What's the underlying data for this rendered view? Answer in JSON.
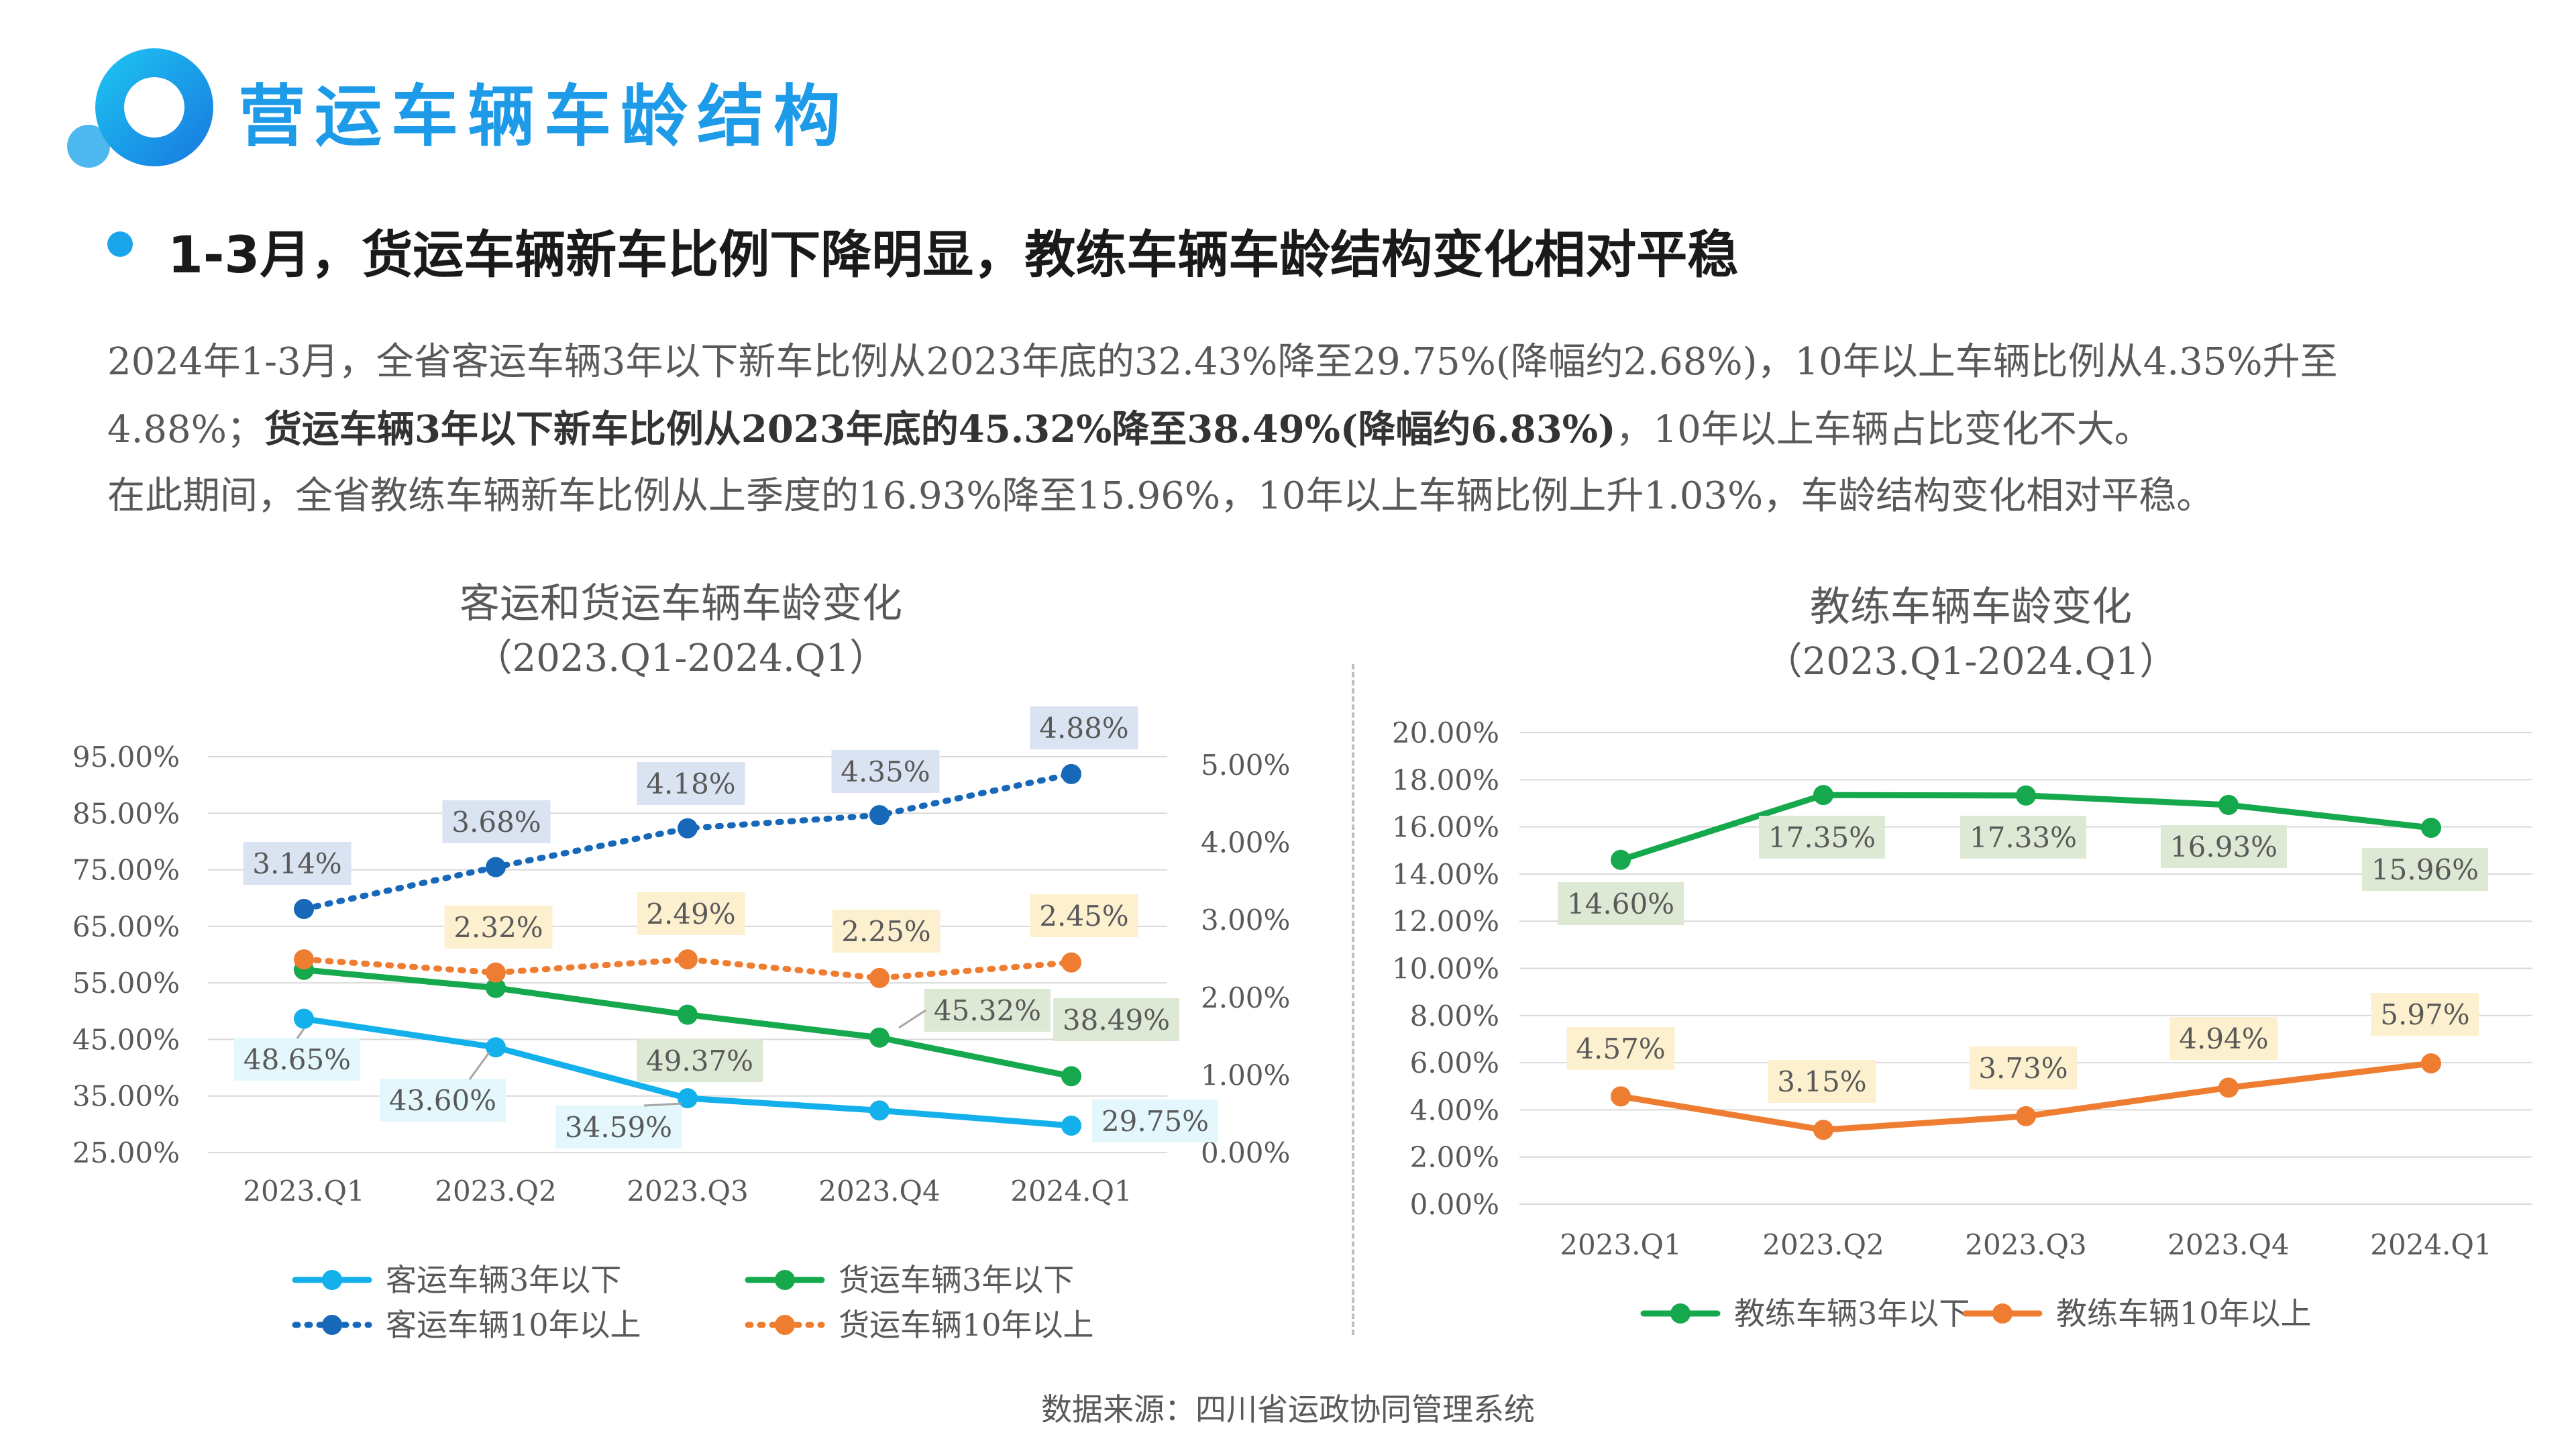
{
  "title": "营运车辆车龄结构",
  "headline": "1-3月，货运车辆新车比例下降明显，教练车辆车龄结构变化相对平稳",
  "paragraph": {
    "line1": "2024年1-3月，全省客运车辆3年以下新车比例从2023年底的32.43%降至29.75%(降幅约2.68%)，10年以上车辆比例从4.35%升至",
    "line2_pre": "4.88%；",
    "line2_bold": "货运车辆3年以下新车比例从2023年底的45.32%降至38.49%(降幅约6.83%)",
    "line2_post": "，10年以上车辆占比变化不大。",
    "line3": "在此期间，全省教练车辆新车比例从上季度的16.93%降至15.96%，10年以上车辆比例上升1.03%，车龄结构变化相对平稳。"
  },
  "source": "数据来源：四川省运政协同管理系统",
  "colors": {
    "title_blue": "#1e9be8",
    "passenger_3y": "#13b0ec",
    "freight_3y": "#16a84c",
    "passenger_10y": "#1768b8",
    "freight_10y": "#ee7d31",
    "label_cyan_bg": "#e3f7fc",
    "label_green_bg": "#dde9d4",
    "label_blue_bg": "#dae3f2",
    "label_orange_bg": "#fdf0cf"
  },
  "chart_data": [
    {
      "type": "line",
      "title": "客运和货运车辆车龄变化",
      "subtitle": "（2023.Q1-2024.Q1）",
      "categories": [
        "2023.Q1",
        "2023.Q2",
        "2023.Q3",
        "2023.Q4",
        "2024.Q1"
      ],
      "y_left": {
        "lim": [
          25,
          95
        ],
        "ticks": [
          "95.00%",
          "85.00%",
          "75.00%",
          "65.00%",
          "55.00%",
          "45.00%",
          "35.00%",
          "25.00%"
        ]
      },
      "y_right": {
        "lim": [
          0,
          5
        ],
        "ticks": [
          "5.00%",
          "4.00%",
          "3.00%",
          "2.00%",
          "1.00%",
          "0.00%"
        ]
      },
      "series": [
        {
          "name": "客运车辆3年以下",
          "axis": "left",
          "style": "solid",
          "color": "#13b0ec",
          "values": [
            48.65,
            43.6,
            34.59,
            32.43,
            29.75
          ],
          "labels": [
            "48.65%",
            "43.60%",
            "34.59%",
            "",
            "29.75%"
          ]
        },
        {
          "name": "货运车辆3年以下",
          "axis": "left",
          "style": "solid",
          "color": "#16a84c",
          "values": [
            57.3,
            54.1,
            49.37,
            45.32,
            38.49
          ],
          "labels": [
            "",
            "",
            "49.37%",
            "45.32%",
            "38.49%"
          ]
        },
        {
          "name": "客运车辆10年以上",
          "axis": "right",
          "style": "dotted",
          "color": "#1768b8",
          "values": [
            3.14,
            3.68,
            4.18,
            4.35,
            4.88
          ],
          "labels": [
            "3.14%",
            "3.68%",
            "4.18%",
            "4.35%",
            "4.88%"
          ]
        },
        {
          "name": "货运车辆10年以上",
          "axis": "right",
          "style": "dotted",
          "color": "#ee7d31",
          "values": [
            2.49,
            2.32,
            2.49,
            2.25,
            2.45
          ],
          "labels": [
            "",
            "2.32%",
            "2.49%",
            "2.25%",
            "2.45%"
          ]
        }
      ],
      "legend": "bottom",
      "grid": true
    },
    {
      "type": "line",
      "title": "教练车辆车龄变化",
      "subtitle": "（2023.Q1-2024.Q1）",
      "categories": [
        "2023.Q1",
        "2023.Q2",
        "2023.Q3",
        "2023.Q4",
        "2024.Q1"
      ],
      "y_left": {
        "lim": [
          0,
          20
        ],
        "ticks": [
          "20.00%",
          "18.00%",
          "16.00%",
          "14.00%",
          "12.00%",
          "10.00%",
          "8.00%",
          "6.00%",
          "4.00%",
          "2.00%",
          "0.00%"
        ]
      },
      "series": [
        {
          "name": "教练车辆3年以下",
          "axis": "left",
          "style": "solid",
          "color": "#16a84c",
          "values": [
            14.6,
            17.35,
            17.33,
            16.93,
            15.96
          ],
          "labels": [
            "14.60%",
            "17.35%",
            "17.33%",
            "16.93%",
            "15.96%"
          ]
        },
        {
          "name": "教练车辆10年以上",
          "axis": "left",
          "style": "solid",
          "color": "#ee7d31",
          "values": [
            4.57,
            3.15,
            3.73,
            4.94,
            5.97
          ],
          "labels": [
            "4.57%",
            "3.15%",
            "3.73%",
            "4.94%",
            "5.97%"
          ]
        }
      ],
      "legend": "bottom",
      "grid": true
    }
  ]
}
